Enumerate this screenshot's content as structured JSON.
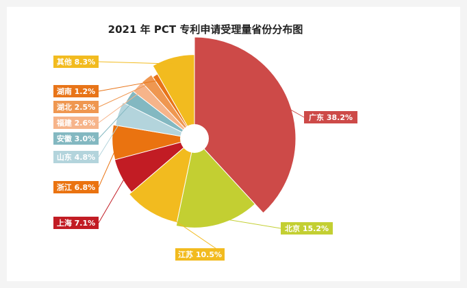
{
  "chart_data": {
    "type": "pie",
    "title": "2021 年 PCT 专利申请受理量省份分布图",
    "slices": [
      {
        "label": "广东 38.2%",
        "value": 38.2,
        "color": "#cd4a48"
      },
      {
        "label": "北京 15.2%",
        "value": 15.2,
        "color": "#c3cf32"
      },
      {
        "label": "江苏 10.5%",
        "value": 10.5,
        "color": "#f2bb1f"
      },
      {
        "label": "上海 7.1%",
        "value": 7.1,
        "color": "#c21c24"
      },
      {
        "label": "浙江 6.8%",
        "value": 6.8,
        "color": "#ea7310"
      },
      {
        "label": "山东 4.8%",
        "value": 4.8,
        "color": "#b3d4dc"
      },
      {
        "label": "安徽 3.0%",
        "value": 3.0,
        "color": "#83b8c1"
      },
      {
        "label": "福建 2.6%",
        "value": 2.6,
        "color": "#f6b48a"
      },
      {
        "label": "湖北 2.5%",
        "value": 2.5,
        "color": "#ef9750"
      },
      {
        "label": "湖南 1.2%",
        "value": 1.2,
        "color": "#e87418"
      },
      {
        "label": "其他 8.3%",
        "value": 8.3,
        "color": "#f2bb1f"
      }
    ]
  }
}
